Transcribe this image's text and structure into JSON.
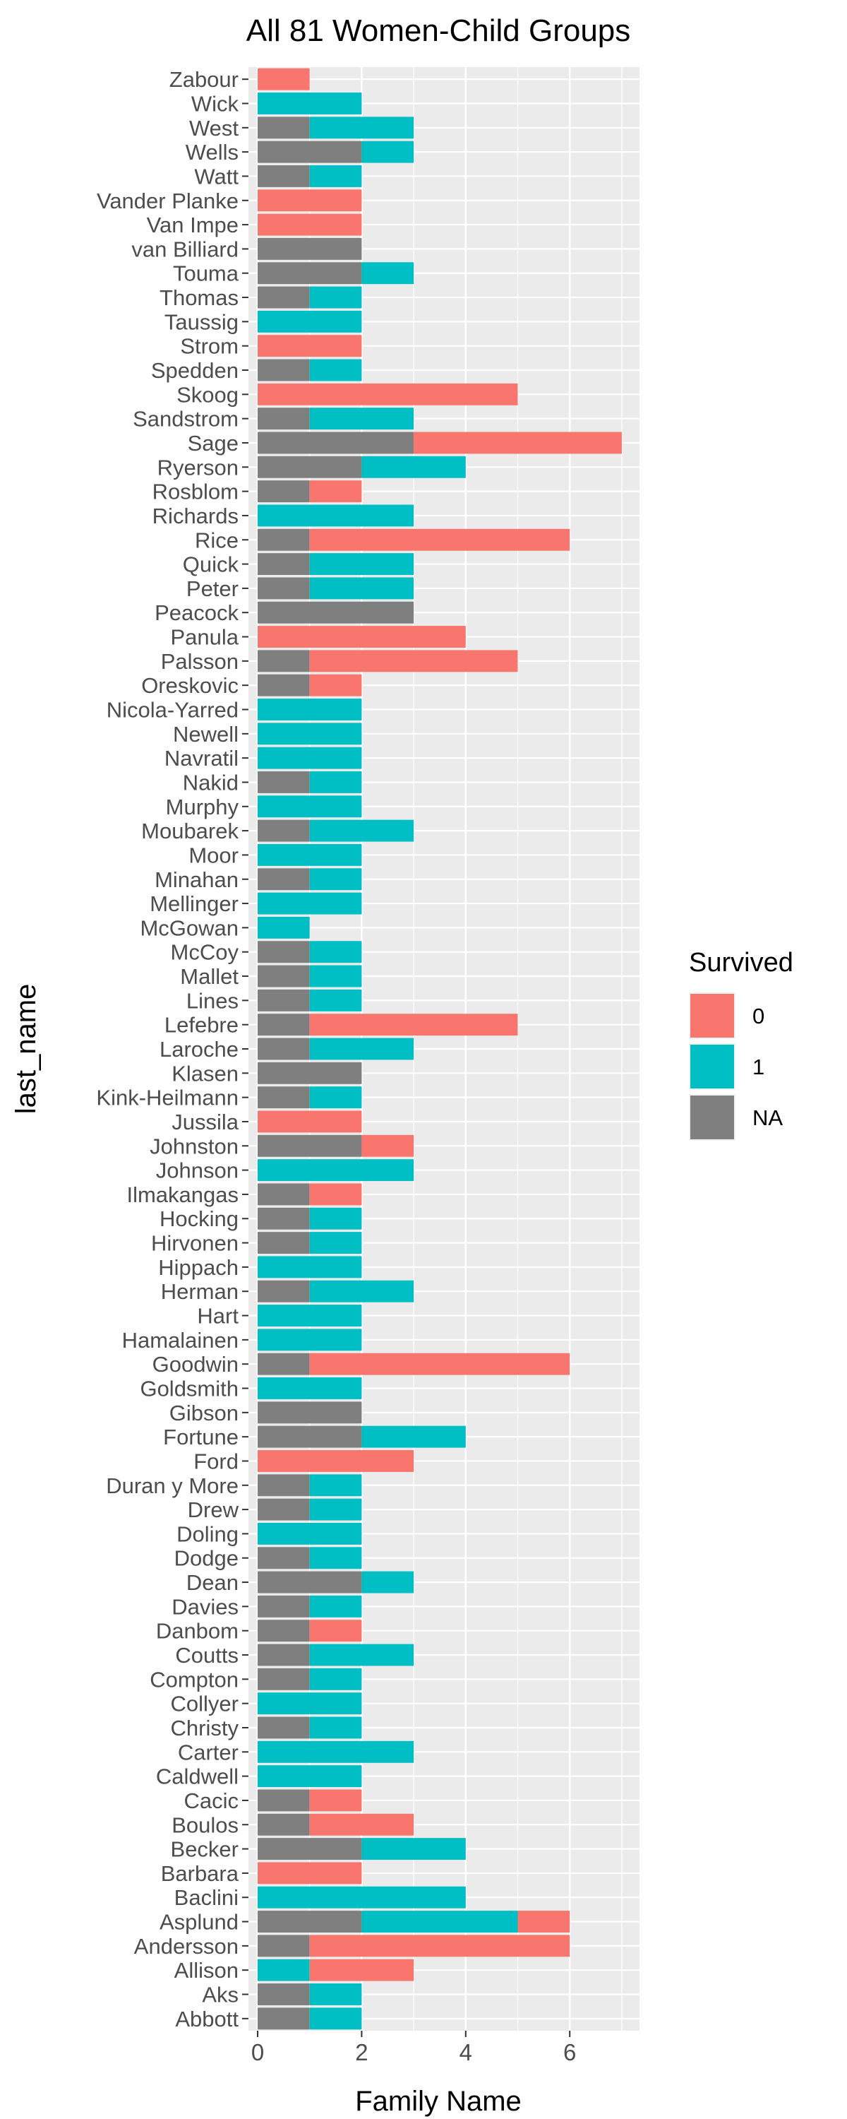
{
  "chart_data": {
    "type": "bar",
    "orientation": "horizontal",
    "stacked": true,
    "title": "All 81 Women-Child Groups",
    "xlabel": "Family Name",
    "ylabel": "last_name",
    "xlim": [
      0,
      7
    ],
    "xticks": [
      "0",
      "2",
      "4",
      "6"
    ],
    "grid": true,
    "legend": {
      "title": "Survived",
      "position": "right",
      "entries": [
        {
          "key": "0",
          "label": "0",
          "color": "#F8766D"
        },
        {
          "key": "1",
          "label": "1",
          "color": "#00BFC4"
        },
        {
          "key": "NA",
          "label": "NA",
          "color": "#7F7F7F"
        }
      ]
    },
    "stack_order": [
      "NA",
      "1",
      "0"
    ],
    "categories": [
      "Zabour",
      "Wick",
      "West",
      "Wells",
      "Watt",
      "Vander Planke",
      "Van Impe",
      "van Billiard",
      "Touma",
      "Thomas",
      "Taussig",
      "Strom",
      "Spedden",
      "Skoog",
      "Sandstrom",
      "Sage",
      "Ryerson",
      "Rosblom",
      "Richards",
      "Rice",
      "Quick",
      "Peter",
      "Peacock",
      "Panula",
      "Palsson",
      "Oreskovic",
      "Nicola-Yarred",
      "Newell",
      "Navratil",
      "Nakid",
      "Murphy",
      "Moubarek",
      "Moor",
      "Minahan",
      "Mellinger",
      "McGowan",
      "McCoy",
      "Mallet",
      "Lines",
      "Lefebre",
      "Laroche",
      "Klasen",
      "Kink-Heilmann",
      "Jussila",
      "Johnston",
      "Johnson",
      "Ilmakangas",
      "Hocking",
      "Hirvonen",
      "Hippach",
      "Herman",
      "Hart",
      "Hamalainen",
      "Goodwin",
      "Goldsmith",
      "Gibson",
      "Fortune",
      "Ford",
      "Duran y More",
      "Drew",
      "Doling",
      "Dodge",
      "Dean",
      "Davies",
      "Danbom",
      "Coutts",
      "Compton",
      "Collyer",
      "Christy",
      "Carter",
      "Caldwell",
      "Cacic",
      "Boulos",
      "Becker",
      "Barbara",
      "Baclini",
      "Asplund",
      "Andersson",
      "Allison",
      "Aks",
      "Abbott"
    ],
    "series": [
      {
        "name": "NA",
        "values": [
          0,
          0,
          1,
          2,
          1,
          0,
          0,
          2,
          2,
          1,
          0,
          0,
          1,
          0,
          1,
          3,
          2,
          1,
          0,
          1,
          1,
          1,
          3,
          0,
          1,
          1,
          0,
          0,
          0,
          1,
          0,
          1,
          0,
          1,
          0,
          0,
          1,
          1,
          1,
          1,
          1,
          2,
          1,
          0,
          2,
          0,
          1,
          1,
          1,
          0,
          1,
          0,
          0,
          1,
          0,
          2,
          2,
          0,
          1,
          1,
          0,
          1,
          2,
          1,
          1,
          1,
          1,
          0,
          1,
          0,
          0,
          1,
          1,
          2,
          0,
          0,
          2,
          1,
          0,
          1,
          1
        ]
      },
      {
        "name": "1",
        "values": [
          0,
          2,
          2,
          1,
          1,
          0,
          0,
          0,
          1,
          1,
          2,
          0,
          1,
          0,
          2,
          0,
          2,
          0,
          3,
          0,
          2,
          2,
          0,
          0,
          0,
          0,
          2,
          2,
          2,
          1,
          2,
          2,
          2,
          1,
          2,
          1,
          1,
          1,
          1,
          0,
          2,
          0,
          1,
          0,
          0,
          3,
          0,
          1,
          1,
          2,
          2,
          2,
          2,
          0,
          2,
          0,
          2,
          0,
          1,
          1,
          2,
          1,
          1,
          1,
          0,
          2,
          1,
          2,
          1,
          3,
          2,
          0,
          0,
          2,
          0,
          4,
          3,
          0,
          1,
          1,
          1
        ]
      },
      {
        "name": "0",
        "values": [
          1,
          0,
          0,
          0,
          0,
          2,
          2,
          0,
          0,
          0,
          0,
          2,
          0,
          5,
          0,
          4,
          0,
          1,
          0,
          5,
          0,
          0,
          0,
          4,
          4,
          1,
          0,
          0,
          0,
          0,
          0,
          0,
          0,
          0,
          0,
          0,
          0,
          0,
          0,
          4,
          0,
          0,
          0,
          2,
          1,
          0,
          1,
          0,
          0,
          0,
          0,
          0,
          0,
          5,
          0,
          0,
          0,
          3,
          0,
          0,
          0,
          0,
          0,
          0,
          1,
          0,
          0,
          0,
          0,
          0,
          0,
          1,
          2,
          0,
          2,
          0,
          1,
          5,
          2,
          0,
          0
        ]
      }
    ]
  }
}
